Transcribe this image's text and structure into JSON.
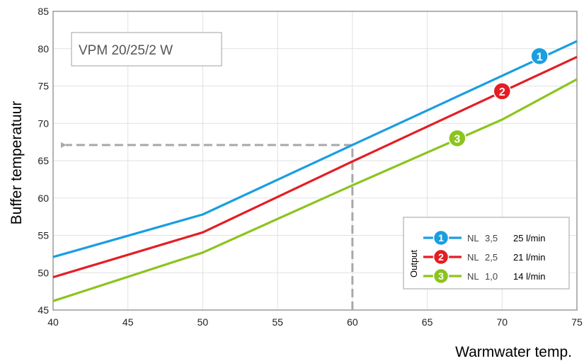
{
  "chart_data": {
    "type": "line",
    "title": "VPM 20/25/2 W",
    "xlabel": "Warmwater temp.",
    "ylabel": "Buffer temperatuur",
    "xlim": [
      40,
      75
    ],
    "ylim": [
      45,
      85
    ],
    "x_ticks": [
      "40",
      "45",
      "50",
      "55",
      "60",
      "65",
      "70",
      "75"
    ],
    "y_ticks": [
      "45",
      "50",
      "55",
      "60",
      "65",
      "70",
      "75",
      "80",
      "85"
    ],
    "grid": true,
    "legend": {
      "title": "Output",
      "placement": "bottom-right",
      "entries": [
        {
          "marker": "1",
          "nl": "NL",
          "nl_value": "3,5",
          "flow": "25 l/min"
        },
        {
          "marker": "2",
          "nl": "NL",
          "nl_value": "2,5",
          "flow": "21 l/min"
        },
        {
          "marker": "3",
          "nl": "NL",
          "nl_value": "1,0",
          "flow": "14 l/min"
        }
      ]
    },
    "series": [
      {
        "marker": "1",
        "color": "#1a9ee0",
        "x": [
          40,
          50,
          60,
          75
        ],
        "y": [
          52.1,
          57.8,
          67.1,
          81.0
        ],
        "marker_at": [
          72.5,
          79.0
        ]
      },
      {
        "marker": "2",
        "color": "#e31e24",
        "x": [
          40,
          50,
          60,
          75
        ],
        "y": [
          49.4,
          55.4,
          64.9,
          78.9
        ],
        "marker_at": [
          70.0,
          74.3
        ]
      },
      {
        "marker": "3",
        "color": "#8cc41e",
        "x": [
          40,
          50,
          60,
          70,
          75
        ],
        "y": [
          46.2,
          52.7,
          61.7,
          70.5,
          75.9
        ],
        "marker_at": [
          67.0,
          68.0
        ]
      }
    ],
    "annotation": {
      "type": "dashed-arrow",
      "from_x": 60,
      "to_x": 40,
      "at_y": 67.1,
      "color": "#a8a8a8"
    }
  }
}
